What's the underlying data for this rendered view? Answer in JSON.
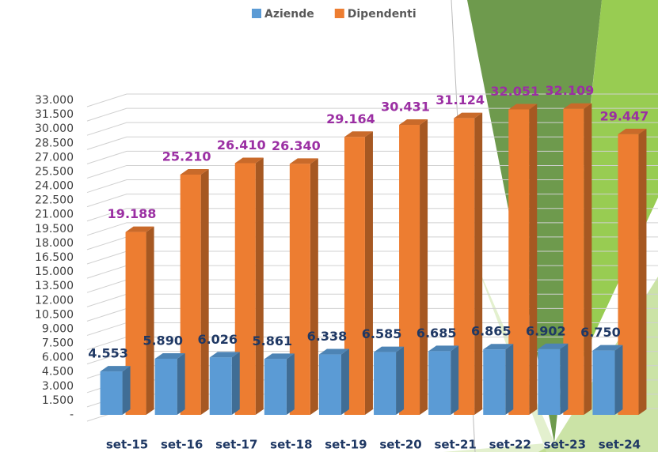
{
  "chart_data": {
    "type": "bar3d",
    "categories": [
      "set-15",
      "set-16",
      "set-17",
      "set-18",
      "set-19",
      "set-20",
      "set-21",
      "set-22",
      "set-23",
      "set-24"
    ],
    "series": [
      {
        "name": "Aziende",
        "color": "#5b9bd5",
        "label_color": "#1f3864",
        "values": [
          4553,
          5890,
          6026,
          5861,
          6338,
          6585,
          6685,
          6865,
          6902,
          6750
        ],
        "value_labels": [
          "4.553",
          "5.890",
          "6.026",
          "5.861",
          "6.338",
          "6.585",
          "6.685",
          "6.865",
          "6.902",
          "6.750"
        ]
      },
      {
        "name": "Dipendenti",
        "color": "#ed7d31",
        "label_color": "#9b2fa3",
        "values": [
          19188,
          25210,
          26410,
          26340,
          29164,
          30431,
          31124,
          32051,
          32109,
          29447
        ],
        "value_labels": [
          "19.188",
          "25.210",
          "26.410",
          "26.340",
          "29.164",
          "30.431",
          "31.124",
          "32.051",
          "32.109",
          "29.447"
        ]
      }
    ],
    "ylim": [
      0,
      33000
    ],
    "yticks": [
      {
        "value": 0,
        "label": "-"
      },
      {
        "value": 1500,
        "label": "1.500"
      },
      {
        "value": 3000,
        "label": "3.000"
      },
      {
        "value": 4500,
        "label": "4.500"
      },
      {
        "value": 6000,
        "label": "6.000"
      },
      {
        "value": 7500,
        "label": "7.500"
      },
      {
        "value": 9000,
        "label": "9.000"
      },
      {
        "value": 10500,
        "label": "10.500"
      },
      {
        "value": 12000,
        "label": "12.000"
      },
      {
        "value": 13500,
        "label": "13.500"
      },
      {
        "value": 15000,
        "label": "15.000"
      },
      {
        "value": 16500,
        "label": "16.500"
      },
      {
        "value": 18000,
        "label": "18.000"
      },
      {
        "value": 19500,
        "label": "19.500"
      },
      {
        "value": 21000,
        "label": "21.000"
      },
      {
        "value": 22500,
        "label": "22.500"
      },
      {
        "value": 24000,
        "label": "24.000"
      },
      {
        "value": 25500,
        "label": "25.500"
      },
      {
        "value": 27000,
        "label": "27.000"
      },
      {
        "value": 28500,
        "label": "28.500"
      },
      {
        "value": 30000,
        "label": "30.000"
      },
      {
        "value": 31500,
        "label": "31.500"
      },
      {
        "value": 33000,
        "label": "33.000"
      }
    ],
    "grid": true,
    "legend": "top"
  }
}
